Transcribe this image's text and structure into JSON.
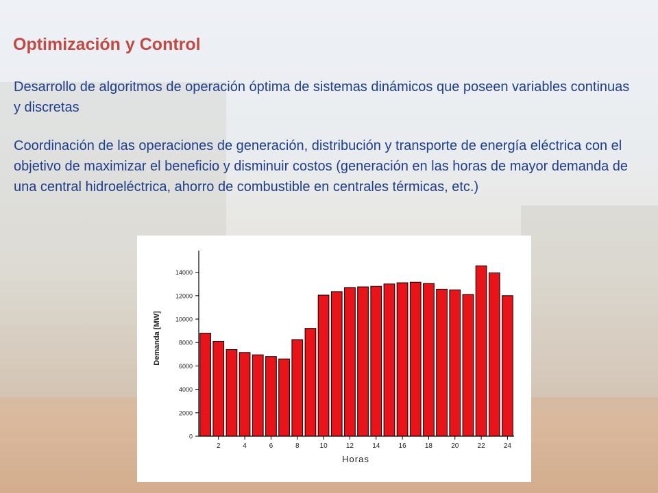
{
  "slide": {
    "title": "Optimización y Control",
    "paragraphs": [
      "Desarrollo de algoritmos de operación óptima de sistemas dinámicos que poseen variables continuas y discretas",
      "Coordinación de las operaciones de generación, distribución y transporte de energía eléctrica con el objetivo de maximizar el beneficio y disminuir costos (generación en las horas de mayor demanda de una central hidroeléctrica, ahorro de combustible en centrales térmicas, etc.)"
    ]
  },
  "colors": {
    "title": "#c24a44",
    "text": "#1f3d8a",
    "bar_fill": "#e8141a",
    "bar_stroke": "#000000"
  },
  "chart_data": {
    "type": "bar",
    "title": "",
    "xlabel": "Horas",
    "ylabel": "Demanda [MW]",
    "x": [
      1,
      2,
      3,
      4,
      5,
      6,
      7,
      8,
      9,
      10,
      11,
      12,
      13,
      14,
      15,
      16,
      17,
      18,
      19,
      20,
      21,
      22,
      23,
      24
    ],
    "values": [
      8800,
      8100,
      7400,
      7150,
      6950,
      6800,
      6600,
      8250,
      9200,
      12050,
      12350,
      12700,
      12750,
      12800,
      13000,
      13100,
      13150,
      13050,
      12550,
      12500,
      12100,
      14550,
      13950,
      12000
    ],
    "xticks": [
      "2",
      "4",
      "6",
      "8",
      "10",
      "12",
      "14",
      "16",
      "18",
      "20",
      "22",
      "24"
    ],
    "yticks": [
      "0",
      "2000",
      "4000",
      "6000",
      "8000",
      "10000",
      "12000",
      "14000"
    ],
    "ylim": [
      0,
      15500
    ],
    "grid": false
  }
}
